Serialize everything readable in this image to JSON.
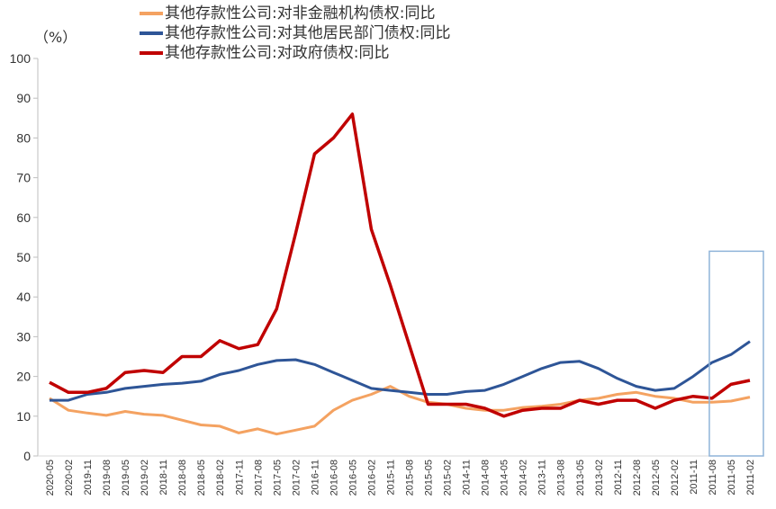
{
  "chart_data": {
    "type": "line",
    "title": "",
    "unit_label": "（%）",
    "xlabel": "",
    "ylabel": "",
    "ylim": [
      0,
      100
    ],
    "yticks": [
      0,
      10,
      20,
      30,
      40,
      50,
      60,
      70,
      80,
      90,
      100
    ],
    "x_reversed": true,
    "grid": false,
    "legend_position": "top",
    "categories": [
      "2020-05",
      "2020-02",
      "2019-11",
      "2019-08",
      "2019-05",
      "2019-02",
      "2018-11",
      "2018-08",
      "2018-05",
      "2018-02",
      "2017-11",
      "2017-08",
      "2017-05",
      "2017-02",
      "2016-11",
      "2016-08",
      "2016-05",
      "2016-02",
      "2015-11",
      "2015-08",
      "2015-05",
      "2015-02",
      "2014-11",
      "2014-08",
      "2014-05",
      "2014-02",
      "2013-11",
      "2013-08",
      "2013-05",
      "2013-02",
      "2012-11",
      "2012-08",
      "2012-05",
      "2012-02",
      "2011-11",
      "2011-08",
      "2011-05",
      "2011-02"
    ],
    "series": [
      {
        "name": "其他存款性公司:对非金融机构债权:同比",
        "color": "#F4A261",
        "values": [
          14.5,
          11.5,
          10.8,
          10.2,
          11.2,
          10.5,
          10.2,
          9,
          7.8,
          7.5,
          5.8,
          6.8,
          5.5,
          6.5,
          7.5,
          11.5,
          14,
          15.5,
          17.5,
          15,
          13.5,
          13,
          12,
          11.5,
          11.5,
          12.2,
          12.5,
          13,
          14,
          14.5,
          15.5,
          16,
          15,
          14.5,
          13.5,
          13.5,
          13.8,
          14.8
        ]
      },
      {
        "name": "其他存款性公司:对其他居民部门债权:同比",
        "color": "#2E5597",
        "values": [
          14,
          14,
          15.5,
          16,
          17,
          17.5,
          18,
          18.3,
          18.8,
          20.5,
          21.5,
          23,
          24,
          24.2,
          23,
          21,
          19,
          17,
          16.5,
          16,
          15.5,
          15.5,
          16.2,
          16.5,
          18,
          20,
          22,
          23.5,
          23.8,
          22,
          19.5,
          17.5,
          16.5,
          17,
          20,
          23.5,
          25.5,
          28.8
        ]
      },
      {
        "name": "其他存款性公司:对政府债权:同比",
        "color": "#C00000",
        "values": [
          18.5,
          16,
          16,
          17,
          21,
          21.5,
          21,
          25,
          25,
          29,
          27,
          28,
          37,
          56,
          76,
          80,
          86,
          57,
          43,
          28,
          13,
          13,
          13,
          12,
          10,
          11.5,
          12,
          12,
          14,
          13,
          14,
          14,
          12,
          14,
          15,
          14.5,
          18,
          19
        ]
      }
    ],
    "highlight_box": {
      "from": "2011-08",
      "to": "2011-02",
      "color": "#8FB4D9"
    }
  }
}
